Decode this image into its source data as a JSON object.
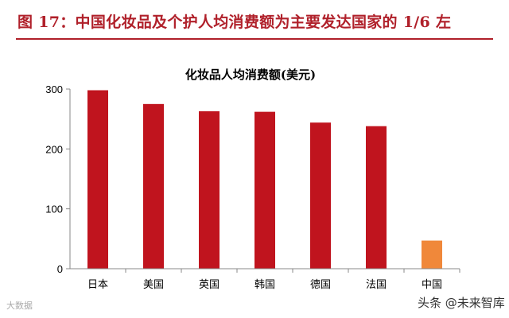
{
  "figure": {
    "title": "图 17：中国化妆品及个护人均消费额为主要发达国家的 1/6 左",
    "accent_color": "#b0202a"
  },
  "chart_data": {
    "type": "bar",
    "title": "化妆品人均消费额(美元)",
    "xlabel": "",
    "ylabel": "",
    "categories": [
      "日本",
      "美国",
      "英国",
      "韩国",
      "德国",
      "法国",
      "中国"
    ],
    "values": [
      298,
      275,
      263,
      262,
      244,
      238,
      47
    ],
    "colors": [
      "#c0141e",
      "#c0141e",
      "#c0141e",
      "#c0141e",
      "#c0141e",
      "#c0141e",
      "#f0883a"
    ],
    "ylim": [
      0,
      300
    ],
    "yticks": [
      0,
      100,
      200,
      300
    ],
    "grid": false,
    "legend": "none"
  },
  "watermarks": {
    "left": "大数据",
    "right": "头条 @未来智库"
  }
}
